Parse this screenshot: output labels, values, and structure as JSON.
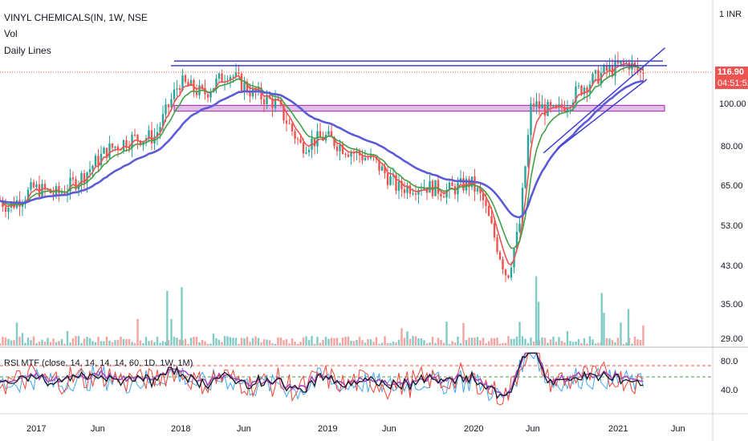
{
  "header": {
    "title": "VINYL CHEMICALS(IN, 1W, NSE",
    "indicator_1": "Vol",
    "indicator_2": "Daily Lines",
    "currency": "1 INR",
    "rsi_label": "RSI MTF (close, 14, 14, 14, 14, 60, 1D, 1W, 1M)"
  },
  "price_tag": {
    "last_price": "116.90",
    "countdown": "04:51:52",
    "color": "#ef5350"
  },
  "colors": {
    "up": "#26a69a",
    "down": "#ef5350",
    "ma_red": "#ef5350",
    "ma_green": "#43a047",
    "ma_blue": "#5b5bd6",
    "trendline": "#3f3fd1",
    "zone_fill": "#e1bee7",
    "zone_border": "#9c27b0",
    "rsi_black": "#131722",
    "rsi_red": "#f44336",
    "rsi_blue": "#42a5f5",
    "rsi_purple": "#ab47bc",
    "vol_up": "#80cbc4",
    "vol_down": "#f5a3a0"
  },
  "chart_data": {
    "type": "candlestick",
    "price_axis_ticks": [
      "1 INR",
      "116.90",
      "100.00",
      "80.00",
      "65.00",
      "53.00",
      "43.00",
      "35.00",
      "29.00"
    ],
    "price_scale": "log",
    "rsi_axis_ticks": [
      "80.0",
      "40.0"
    ],
    "rsi_levels": [
      70,
      60
    ],
    "x_ticks": [
      "2017",
      "Jun",
      "2018",
      "Jun",
      "2019",
      "Jun",
      "2020",
      "Jun",
      "2021",
      "Jun"
    ],
    "last_close": 116.9,
    "price_path": [
      {
        "date": "2016-09",
        "price": 63
      },
      {
        "date": "2016-11",
        "price": 58
      },
      {
        "date": "2017-01",
        "price": 64
      },
      {
        "date": "2017-03",
        "price": 62
      },
      {
        "date": "2017-05",
        "price": 68
      },
      {
        "date": "2017-07",
        "price": 78
      },
      {
        "date": "2017-09",
        "price": 83
      },
      {
        "date": "2017-11",
        "price": 84
      },
      {
        "date": "2018-01",
        "price": 112
      },
      {
        "date": "2018-03",
        "price": 105
      },
      {
        "date": "2018-05",
        "price": 118
      },
      {
        "date": "2018-07",
        "price": 106
      },
      {
        "date": "2018-09",
        "price": 100
      },
      {
        "date": "2018-11",
        "price": 80
      },
      {
        "date": "2019-01",
        "price": 84
      },
      {
        "date": "2019-03",
        "price": 78
      },
      {
        "date": "2019-05",
        "price": 74
      },
      {
        "date": "2019-07",
        "price": 64
      },
      {
        "date": "2019-09",
        "price": 65
      },
      {
        "date": "2019-11",
        "price": 63
      },
      {
        "date": "2020-01",
        "price": 66
      },
      {
        "date": "2020-02",
        "price": 60
      },
      {
        "date": "2020-04",
        "price": 40
      },
      {
        "date": "2020-05",
        "price": 52
      },
      {
        "date": "2020-06",
        "price": 100
      },
      {
        "date": "2020-08",
        "price": 95
      },
      {
        "date": "2020-10",
        "price": 108
      },
      {
        "date": "2020-12",
        "price": 118
      },
      {
        "date": "2021-02",
        "price": 124
      },
      {
        "date": "2021-03",
        "price": 116.9
      }
    ],
    "horizontal_lines": [
      125,
      122
    ],
    "support_zone": [
      96,
      99
    ],
    "rising_trendline": [
      {
        "date": "2020-07",
        "price": 77
      },
      {
        "date": "2021-05",
        "price": 134
      }
    ],
    "volume_spikes": [
      {
        "date": "2017-12",
        "level": 0.75
      },
      {
        "date": "2018-01",
        "level": 0.8
      },
      {
        "date": "2020-06",
        "level": 0.95
      },
      {
        "date": "2020-06",
        "level": 0.6
      },
      {
        "date": "2020-11",
        "level": 0.72
      },
      {
        "date": "2021-01",
        "level": 0.5
      }
    ]
  }
}
